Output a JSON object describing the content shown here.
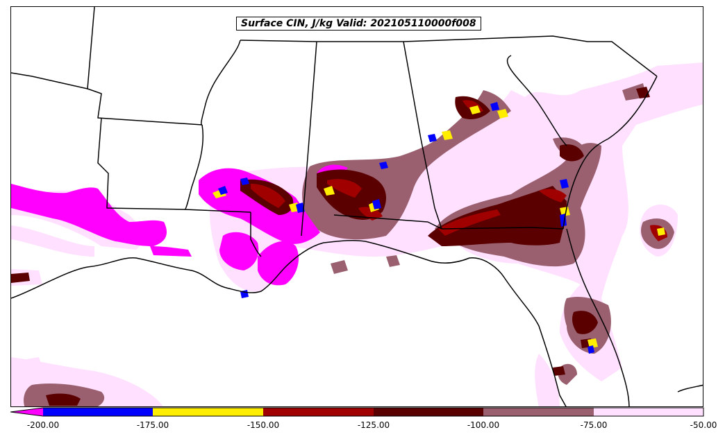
{
  "title": "Surface CIN, J/kg Valid: 202105110000f008",
  "colorbar": {
    "tick_labels": [
      "-200.00",
      "-175.00",
      "-150.00",
      "-125.00",
      "-100.00",
      "-75.00",
      "-50.00"
    ],
    "bins": [
      {
        "range": "< -200",
        "color": "#ff00ff"
      },
      {
        "range": "-200 to -175",
        "color": "#0000ff"
      },
      {
        "range": "-175 to -150",
        "color": "#ffee00"
      },
      {
        "range": "-150 to -125",
        "color": "#a00000"
      },
      {
        "range": "-125 to -100",
        "color": "#5a0000"
      },
      {
        "range": "-100 to -75",
        "color": "#9a6070"
      },
      {
        "range": "-75 to -50",
        "color": "#ffe0ff"
      }
    ]
  }
}
